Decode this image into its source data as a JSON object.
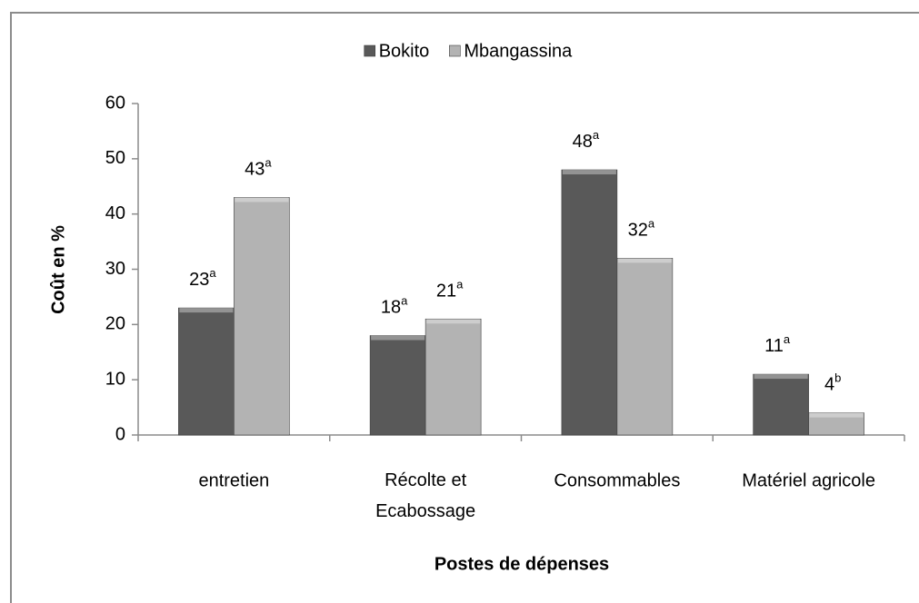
{
  "chart_data": {
    "type": "bar",
    "categories": [
      "entretien",
      "Récolte et Ecabossage",
      "Consommables",
      "Matériel agricole"
    ],
    "series": [
      {
        "name": "Bokito",
        "color": "#595959",
        "values": [
          23,
          18,
          48,
          11
        ],
        "letters": [
          "a",
          "a",
          "a",
          "a"
        ]
      },
      {
        "name": "Mbangassina",
        "color": "#b3b3b3",
        "values": [
          43,
          21,
          32,
          4
        ],
        "letters": [
          "a",
          "a",
          "a",
          "b"
        ]
      }
    ],
    "ylabel": "Coût en %",
    "xlabel": "Postes de dépenses",
    "ylim": [
      0,
      60
    ],
    "yticks": [
      0,
      10,
      20,
      30,
      40,
      50,
      60
    ],
    "legend": "top"
  }
}
